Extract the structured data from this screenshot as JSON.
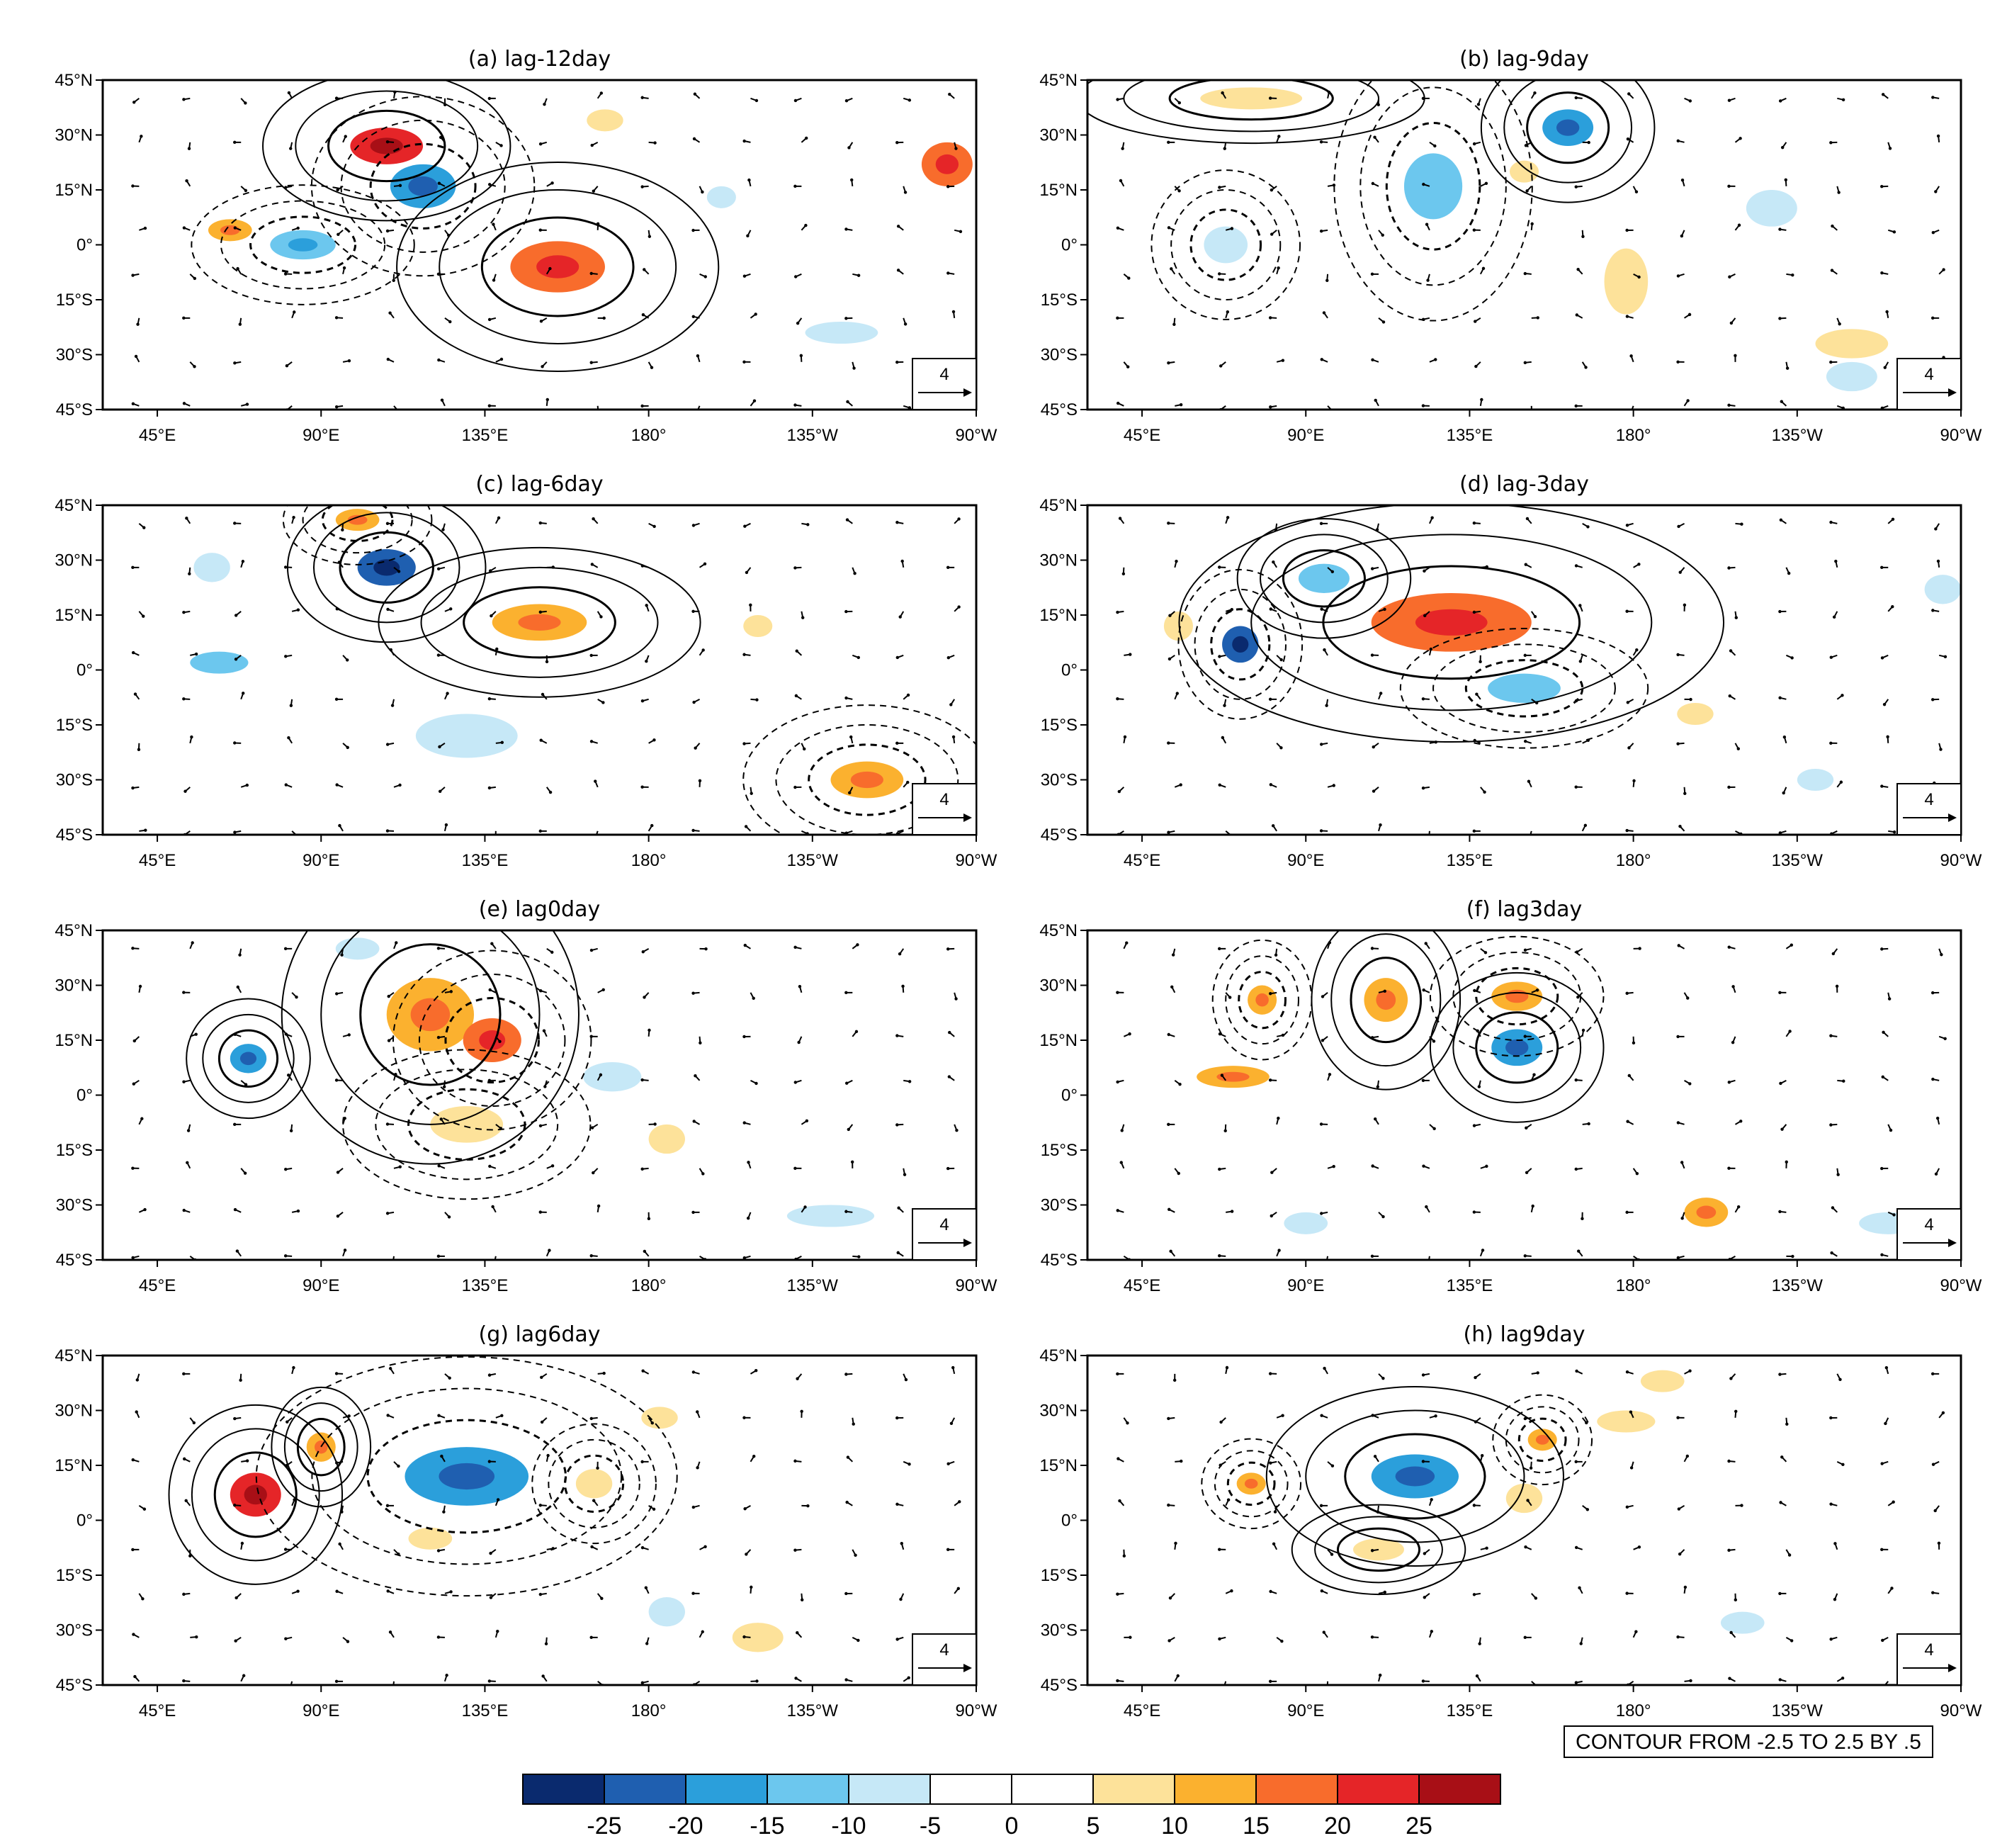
{
  "chart_data": {
    "type": "map",
    "description_units": "lagged composite anomalies; shading and contours",
    "lon_ticks": [
      "45°E",
      "90°E",
      "135°E",
      "180°",
      "135°W",
      "90°W"
    ],
    "lon_tick_values": [
      45,
      90,
      135,
      180,
      225,
      270
    ],
    "lat_ticks": [
      "45°N",
      "30°N",
      "15°N",
      "0°",
      "15°S",
      "30°S",
      "45°S"
    ],
    "lat_tick_values": [
      45,
      30,
      15,
      0,
      -15,
      -30,
      -45
    ],
    "lon_range": [
      30,
      270
    ],
    "lat_range": [
      -45,
      45
    ],
    "reference_vector_label": "4",
    "contour_note": "CONTOUR FROM -2.5 TO 2.5 BY .5",
    "colorbar": {
      "labels": [
        "-25",
        "-20",
        "-15",
        "-10",
        "-5",
        "0",
        "5",
        "10",
        "15",
        "20",
        "25"
      ],
      "colors": [
        "#0a2a6e",
        "#1f5fb0",
        "#2b9fdb",
        "#6cc7ee",
        "#c6e8f7",
        "#ffffff",
        "#ffffff",
        "#fde29a",
        "#fbb12f",
        "#f86c2c",
        "#e52528",
        "#a80f16"
      ]
    },
    "panels": [
      {
        "title": "(a) lag-12day",
        "blobs": [
          {
            "lon": 108,
            "lat": 27,
            "rx": 10,
            "ry": 5,
            "v": 22
          },
          {
            "lon": 118,
            "lat": 16,
            "rx": 9,
            "ry": 6,
            "v": -17
          },
          {
            "lon": 155,
            "lat": -6,
            "rx": 13,
            "ry": 7,
            "v": 16
          },
          {
            "lon": 85,
            "lat": 0,
            "rx": 9,
            "ry": 4,
            "v": -14
          },
          {
            "lon": 65,
            "lat": 4,
            "rx": 6,
            "ry": 3,
            "v": 14
          },
          {
            "lon": 168,
            "lat": 34,
            "rx": 5,
            "ry": 3,
            "v": 8
          },
          {
            "lon": 200,
            "lat": 13,
            "rx": 4,
            "ry": 3,
            "v": -8
          },
          {
            "lon": 262,
            "lat": 22,
            "rx": 7,
            "ry": 6,
            "v": 15
          },
          {
            "lon": 233,
            "lat": -24,
            "rx": 10,
            "ry": 3,
            "v": -8
          }
        ]
      },
      {
        "title": "(b) lag-9day",
        "blobs": [
          {
            "lon": 162,
            "lat": 32,
            "rx": 7,
            "ry": 5,
            "v": -15
          },
          {
            "lon": 125,
            "lat": 16,
            "rx": 8,
            "ry": 9,
            "v": -10
          },
          {
            "lon": 75,
            "lat": 40,
            "rx": 14,
            "ry": 3,
            "v": 8
          },
          {
            "lon": 68,
            "lat": 0,
            "rx": 6,
            "ry": 5,
            "v": -8
          },
          {
            "lon": 178,
            "lat": -10,
            "rx": 6,
            "ry": 9,
            "v": 8
          },
          {
            "lon": 218,
            "lat": 10,
            "rx": 7,
            "ry": 5,
            "v": -8
          },
          {
            "lon": 240,
            "lat": -27,
            "rx": 10,
            "ry": 4,
            "v": 8
          },
          {
            "lon": 240,
            "lat": -36,
            "rx": 7,
            "ry": 4,
            "v": -7
          },
          {
            "lon": 150,
            "lat": 20,
            "rx": 4,
            "ry": 3,
            "v": 8
          }
        ]
      },
      {
        "title": "(c) lag-6day",
        "blobs": [
          {
            "lon": 108,
            "lat": 28,
            "rx": 8,
            "ry": 5,
            "v": -22
          },
          {
            "lon": 100,
            "lat": 41,
            "rx": 6,
            "ry": 3,
            "v": 12
          },
          {
            "lon": 150,
            "lat": 13,
            "rx": 13,
            "ry": 5,
            "v": 14
          },
          {
            "lon": 240,
            "lat": -30,
            "rx": 10,
            "ry": 5,
            "v": 13
          },
          {
            "lon": 62,
            "lat": 2,
            "rx": 8,
            "ry": 3,
            "v": -10
          },
          {
            "lon": 130,
            "lat": -18,
            "rx": 14,
            "ry": 6,
            "v": -8
          },
          {
            "lon": 60,
            "lat": 28,
            "rx": 5,
            "ry": 4,
            "v": -8
          },
          {
            "lon": 210,
            "lat": 12,
            "rx": 4,
            "ry": 3,
            "v": 9
          }
        ]
      },
      {
        "title": "(d) lag-3day",
        "blobs": [
          {
            "lon": 130,
            "lat": 13,
            "rx": 22,
            "ry": 8,
            "v": 18
          },
          {
            "lon": 72,
            "lat": 7,
            "rx": 5,
            "ry": 5,
            "v": -23
          },
          {
            "lon": 95,
            "lat": 25,
            "rx": 7,
            "ry": 4,
            "v": -10
          },
          {
            "lon": 150,
            "lat": -5,
            "rx": 10,
            "ry": 4,
            "v": -10
          },
          {
            "lon": 55,
            "lat": 12,
            "rx": 4,
            "ry": 4,
            "v": 8
          },
          {
            "lon": 230,
            "lat": -30,
            "rx": 5,
            "ry": 3,
            "v": -8
          },
          {
            "lon": 265,
            "lat": 22,
            "rx": 5,
            "ry": 4,
            "v": -8
          },
          {
            "lon": 197,
            "lat": -12,
            "rx": 5,
            "ry": 3,
            "v": 8
          }
        ]
      },
      {
        "title": "(e) lag0day",
        "blobs": [
          {
            "lon": 120,
            "lat": 22,
            "rx": 12,
            "ry": 10,
            "v": 13
          },
          {
            "lon": 137,
            "lat": 15,
            "rx": 8,
            "ry": 6,
            "v": 17
          },
          {
            "lon": 70,
            "lat": 10,
            "rx": 5,
            "ry": 4,
            "v": -16
          },
          {
            "lon": 130,
            "lat": -8,
            "rx": 10,
            "ry": 5,
            "v": 8
          },
          {
            "lon": 230,
            "lat": -33,
            "rx": 12,
            "ry": 3,
            "v": -8
          },
          {
            "lon": 100,
            "lat": 40,
            "rx": 6,
            "ry": 3,
            "v": -8
          },
          {
            "lon": 170,
            "lat": 5,
            "rx": 8,
            "ry": 4,
            "v": -7
          },
          {
            "lon": 185,
            "lat": -12,
            "rx": 5,
            "ry": 4,
            "v": 9
          }
        ]
      },
      {
        "title": "(f) lag3day",
        "blobs": [
          {
            "lon": 148,
            "lat": 13,
            "rx": 7,
            "ry": 5,
            "v": -15
          },
          {
            "lon": 148,
            "lat": 27,
            "rx": 7,
            "ry": 4,
            "v": 13
          },
          {
            "lon": 112,
            "lat": 26,
            "rx": 6,
            "ry": 6,
            "v": 12
          },
          {
            "lon": 78,
            "lat": 26,
            "rx": 4,
            "ry": 4,
            "v": 13
          },
          {
            "lon": 70,
            "lat": 5,
            "rx": 10,
            "ry": 3,
            "v": 12
          },
          {
            "lon": 200,
            "lat": -32,
            "rx": 6,
            "ry": 4,
            "v": 12
          },
          {
            "lon": 250,
            "lat": -35,
            "rx": 8,
            "ry": 3,
            "v": -8
          },
          {
            "lon": 90,
            "lat": -35,
            "rx": 6,
            "ry": 3,
            "v": -7
          }
        ]
      },
      {
        "title": "(g) lag6day",
        "blobs": [
          {
            "lon": 72,
            "lat": 7,
            "rx": 7,
            "ry": 6,
            "v": 20
          },
          {
            "lon": 130,
            "lat": 12,
            "rx": 17,
            "ry": 8,
            "v": -16
          },
          {
            "lon": 90,
            "lat": 20,
            "rx": 4,
            "ry": 4,
            "v": 12
          },
          {
            "lon": 165,
            "lat": 10,
            "rx": 5,
            "ry": 4,
            "v": 8
          },
          {
            "lon": 210,
            "lat": -32,
            "rx": 7,
            "ry": 4,
            "v": 8
          },
          {
            "lon": 185,
            "lat": -25,
            "rx": 5,
            "ry": 4,
            "v": -8
          },
          {
            "lon": 120,
            "lat": -5,
            "rx": 6,
            "ry": 3,
            "v": 8
          },
          {
            "lon": 183,
            "lat": 28,
            "rx": 5,
            "ry": 3,
            "v": 7
          }
        ]
      },
      {
        "title": "(h) lag9day",
        "blobs": [
          {
            "lon": 120,
            "lat": 12,
            "rx": 12,
            "ry": 6,
            "v": -16
          },
          {
            "lon": 75,
            "lat": 10,
            "rx": 4,
            "ry": 3,
            "v": 13
          },
          {
            "lon": 110,
            "lat": -8,
            "rx": 7,
            "ry": 3,
            "v": 8
          },
          {
            "lon": 155,
            "lat": 22,
            "rx": 4,
            "ry": 3,
            "v": 12
          },
          {
            "lon": 178,
            "lat": 27,
            "rx": 8,
            "ry": 3,
            "v": 8
          },
          {
            "lon": 188,
            "lat": 38,
            "rx": 6,
            "ry": 3,
            "v": 8
          },
          {
            "lon": 210,
            "lat": -28,
            "rx": 6,
            "ry": 3,
            "v": -8
          },
          {
            "lon": 150,
            "lat": 6,
            "rx": 5,
            "ry": 4,
            "v": 8
          }
        ]
      }
    ]
  }
}
